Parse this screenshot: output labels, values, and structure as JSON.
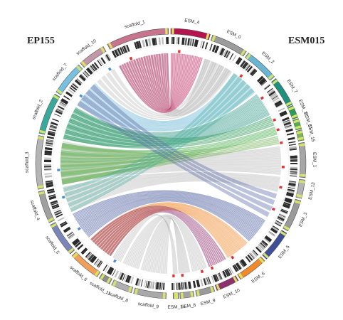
{
  "genomes": {
    "left": "EP155",
    "right": "ESM015"
  },
  "sequences": [
    {
      "name": "scaffold_1",
      "color": "#c9748e"
    },
    {
      "name": "ESM_4",
      "color": "#b5154f"
    },
    {
      "name": "ESM_0",
      "color": "#9c9c9c"
    },
    {
      "name": "ESM_2",
      "color": "#6bb5d4"
    },
    {
      "name": "ESM_7",
      "color": "#1f8f7e"
    },
    {
      "name": "ESM_12",
      "color": "#2e9a5a"
    },
    {
      "name": "ESM_11",
      "color": "#4caf50"
    },
    {
      "name": "ESM_15",
      "color": "#7bb661"
    },
    {
      "name": "ESM_1",
      "color": "#a6a6a6"
    },
    {
      "name": "ESM_13",
      "color": "#b3b3b3"
    },
    {
      "name": "ESM_3",
      "color": "#9a9a9a"
    },
    {
      "name": "ESM_5",
      "color": "#3f4f96"
    },
    {
      "name": "ESM_6",
      "color": "#f08a2c"
    },
    {
      "name": "ESM_10",
      "color": "#8e2f6e"
    },
    {
      "name": "ESM_9",
      "color": "#9a9a9a"
    },
    {
      "name": "ESM_8",
      "color": "#a3a3a3"
    },
    {
      "name": "ESM_14",
      "color": "#8a8a8a"
    },
    {
      "name": "scaffold_9",
      "color": "#a8a8a8"
    },
    {
      "name": "scaffold_8",
      "color": "#b0b0b0"
    },
    {
      "name": "scaffold_11",
      "color": "#8d8d8d"
    },
    {
      "name": "scaffold_6",
      "color": "#f0a05a"
    },
    {
      "name": "scaffold_5",
      "color": "#7b86b8"
    },
    {
      "name": "scaffold_4",
      "color": "#a0a0a0"
    },
    {
      "name": "scaffold_3",
      "color": "#b5b5b5"
    },
    {
      "name": "scaffold_2",
      "color": "#3aa89a"
    },
    {
      "name": "scaffold_7",
      "color": "#79bfe0"
    },
    {
      "name": "scaffold_10",
      "color": "#c098a8"
    }
  ]
}
